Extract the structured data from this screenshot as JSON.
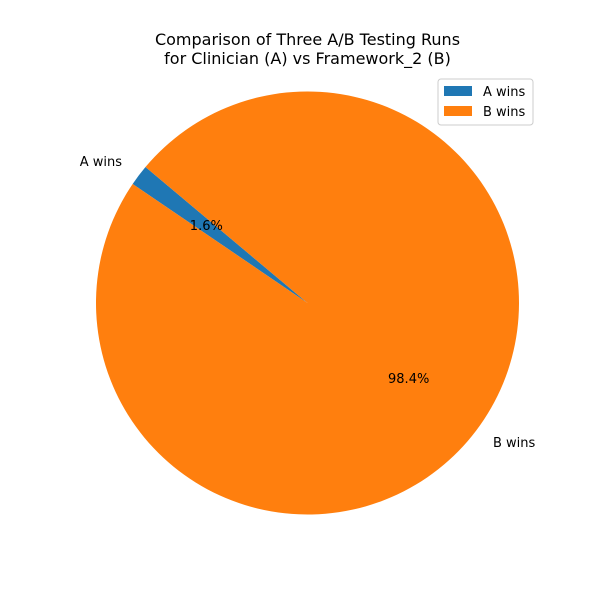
{
  "chart_data": {
    "type": "pie",
    "title_lines": [
      "Comparison of Three A/B Testing Runs",
      "for Clinician (A) vs Framework_2 (B)"
    ],
    "slices": [
      {
        "label": "A wins",
        "value": 1.6,
        "pct_label": "1.6%",
        "color": "#1f77b4"
      },
      {
        "label": "B wins",
        "value": 98.4,
        "pct_label": "98.4%",
        "color": "#ff7f0e"
      }
    ],
    "legend": {
      "placement": "top-right",
      "entries": [
        "A wins",
        "B wins"
      ]
    },
    "start_angle_deg": 140,
    "direction": "counterclockwise"
  }
}
